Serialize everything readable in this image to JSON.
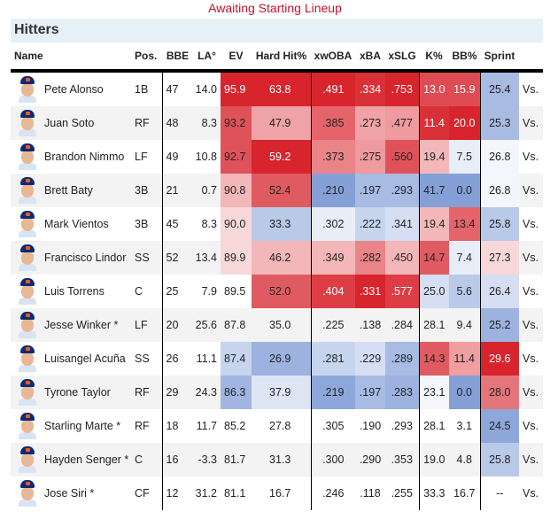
{
  "status_text": "Awaiting Starting Lineup",
  "section_title": "Hitters",
  "columns": {
    "name": "Name",
    "pos": "Pos.",
    "bbe": "BBE",
    "la": "LA°",
    "ev": "EV",
    "hard_hit": "Hard Hit%",
    "xwoba": "xwOBA",
    "xba": "xBA",
    "xslg": "xSLG",
    "k_pct": "K%",
    "bb_pct": "BB%",
    "sprint": "Sprint"
  },
  "vs_label": "Vs.",
  "colors": {
    "status": "#c8102e",
    "section_bg": "#e6f0f7",
    "red_strong": "#d7242d",
    "blue_strong": "#8099d4"
  },
  "players": [
    {
      "name": "Pete Alonso",
      "pos": "1B",
      "bbe": "47",
      "la": "14.0",
      "ev": "95.9",
      "hard_hit": "63.8",
      "xwoba": ".491",
      "xba": ".334",
      "xslg": ".753",
      "k_pct": "13.0",
      "bb_pct": "15.9",
      "sprint": "25.4",
      "heat": {
        "ev": "#d7242d",
        "hard_hit": "#d7242d",
        "xwoba": "#d7242d",
        "xba": "#da3038",
        "xslg": "#d7242d",
        "k_pct": "#df4b52",
        "bb_pct": "#df4b52",
        "sprint": "#a8bbe2"
      },
      "lite": [
        "ev",
        "hard_hit",
        "xwoba",
        "xba",
        "xslg",
        "k_pct",
        "bb_pct"
      ]
    },
    {
      "name": "Juan Soto",
      "pos": "RF",
      "bbe": "48",
      "la": "8.3",
      "ev": "93.2",
      "hard_hit": "47.9",
      "xwoba": ".385",
      "xba": ".273",
      "xslg": ".477",
      "k_pct": "11.4",
      "bb_pct": "20.0",
      "sprint": "25.3",
      "heat": {
        "ev": "#e05259",
        "hard_hit": "#efa3a6",
        "xwoba": "#e46469",
        "xba": "#efa3a6",
        "xslg": "#ee9a9e",
        "k_pct": "#d93039",
        "bb_pct": "#d7242d",
        "sprint": "#a8bbe2"
      },
      "lite": [
        "k_pct",
        "bb_pct"
      ]
    },
    {
      "name": "Brandon Nimmo",
      "pos": "LF",
      "bbe": "49",
      "la": "10.8",
      "ev": "92.7",
      "hard_hit": "59.2",
      "xwoba": ".373",
      "xba": ".275",
      "xslg": ".560",
      "k_pct": "19.4",
      "bb_pct": "7.5",
      "sprint": "26.8",
      "heat": {
        "ev": "#e05259",
        "hard_hit": "#d7242d",
        "xwoba": "#e98488",
        "xba": "#ee9a9e",
        "xslg": "#e05259",
        "k_pct": "#f3b7b9",
        "bb_pct": "#e8eef8",
        "sprint": "#f4f6fb"
      },
      "lite": [
        "hard_hit"
      ]
    },
    {
      "name": "Brett Baty",
      "pos": "3B",
      "bbe": "21",
      "la": "0.7",
      "ev": "90.8",
      "hard_hit": "52.4",
      "xwoba": ".210",
      "xba": ".197",
      "xslg": ".293",
      "k_pct": "41.7",
      "bb_pct": "0.0",
      "sprint": "26.8",
      "heat": {
        "ev": "#f3b7b9",
        "hard_hit": "#e05b61",
        "xwoba": "#84a0d6",
        "xba": "#a8bbe2",
        "xslg": "#a8bbe2",
        "k_pct": "#84a0d6",
        "bb_pct": "#84a0d6",
        "sprint": "#f4f6fb"
      },
      "lite": []
    },
    {
      "name": "Mark Vientos",
      "pos": "3B",
      "bbe": "45",
      "la": "8.3",
      "ev": "90.0",
      "hard_hit": "33.3",
      "xwoba": ".302",
      "xba": ".222",
      "xslg": ".341",
      "k_pct": "19.4",
      "bb_pct": "13.4",
      "sprint": "25.8",
      "heat": {
        "ev": "#f8d7d8",
        "hard_hit": "#b9c9e8",
        "xwoba": "#e8eef8",
        "xba": "#c7d4ee",
        "xslg": "#d5def2",
        "k_pct": "#f3b7b9",
        "bb_pct": "#e46469",
        "sprint": "#b9c9e8"
      },
      "lite": []
    },
    {
      "name": "Francisco Lindor",
      "pos": "SS",
      "bbe": "52",
      "la": "13.4",
      "ev": "89.9",
      "hard_hit": "46.2",
      "xwoba": ".349",
      "xba": ".282",
      "xslg": ".450",
      "k_pct": "14.7",
      "bb_pct": "7.4",
      "sprint": "27.3",
      "heat": {
        "ev": "#f8d7d8",
        "hard_hit": "#f3b7b9",
        "xwoba": "#f3b7b9",
        "xba": "#e98488",
        "xslg": "#f3b7b9",
        "k_pct": "#e05b61",
        "bb_pct": "#e8eef8",
        "sprint": "#f8d7d8"
      },
      "lite": []
    },
    {
      "name": "Luis Torrens",
      "pos": "C",
      "bbe": "25",
      "la": "7.9",
      "ev": "89.5",
      "hard_hit": "52.0",
      "xwoba": ".404",
      "xba": ".331",
      "xslg": ".577",
      "k_pct": "25.0",
      "bb_pct": "5.6",
      "sprint": "26.4",
      "heat": {
        "ev": "",
        "hard_hit": "#e05b61",
        "xwoba": "#dd3e45",
        "xba": "#d7242d",
        "xslg": "#dd3e45",
        "k_pct": "#d5def2",
        "bb_pct": "#b9c9e8",
        "sprint": "#d5def2"
      },
      "lite": [
        "xwoba",
        "xba",
        "xslg"
      ]
    },
    {
      "name": "Jesse Winker *",
      "pos": "LF",
      "bbe": "20",
      "la": "25.6",
      "ev": "87.8",
      "hard_hit": "35.0",
      "xwoba": ".225",
      "xba": ".138",
      "xslg": ".284",
      "k_pct": "28.1",
      "bb_pct": "9.4",
      "sprint": "25.2",
      "heat": {
        "ev": "",
        "hard_hit": "",
        "xwoba": "",
        "xba": "",
        "xslg": "",
        "k_pct": "",
        "bb_pct": "",
        "sprint": "#9db2df"
      },
      "lite": []
    },
    {
      "name": "Luisangel Acuña",
      "pos": "SS",
      "bbe": "26",
      "la": "11.1",
      "ev": "87.4",
      "hard_hit": "26.9",
      "xwoba": ".281",
      "xba": ".229",
      "xslg": ".289",
      "k_pct": "14.3",
      "bb_pct": "11.4",
      "sprint": "29.6",
      "heat": {
        "ev": "#c7d4ee",
        "hard_hit": "#9db2df",
        "xwoba": "#c7d4ee",
        "xba": "#d5def2",
        "xslg": "#a8bbe2",
        "k_pct": "#e05b61",
        "bb_pct": "#ef9fa2",
        "sprint": "#d7242d"
      },
      "lite": [
        "sprint"
      ]
    },
    {
      "name": "Tyrone Taylor",
      "pos": "RF",
      "bbe": "29",
      "la": "24.3",
      "ev": "86.3",
      "hard_hit": "37.9",
      "xwoba": ".219",
      "xba": ".197",
      "xslg": ".283",
      "k_pct": "23.1",
      "bb_pct": "0.0",
      "sprint": "28.0",
      "heat": {
        "ev": "#a1b5e0",
        "hard_hit": "#dde5f4",
        "xwoba": "#8ea7da",
        "xba": "#a8bbe2",
        "xslg": "#9db2df",
        "k_pct": "#f4f6fb",
        "bb_pct": "#84a0d6",
        "sprint": "#e4757a"
      },
      "lite": []
    },
    {
      "name": "Starling Marte *",
      "pos": "RF",
      "bbe": "18",
      "la": "11.7",
      "ev": "85.2",
      "hard_hit": "27.8",
      "xwoba": ".305",
      "xba": ".190",
      "xslg": ".293",
      "k_pct": "28.1",
      "bb_pct": "3.1",
      "sprint": "24.5",
      "heat": {
        "ev": "",
        "hard_hit": "",
        "xwoba": "",
        "xba": "",
        "xslg": "",
        "k_pct": "",
        "bb_pct": "",
        "sprint": "#8ea7da"
      },
      "lite": []
    },
    {
      "name": "Hayden Senger *",
      "pos": "C",
      "bbe": "16",
      "la": "-3.3",
      "ev": "81.7",
      "hard_hit": "31.3",
      "xwoba": ".300",
      "xba": ".290",
      "xslg": ".353",
      "k_pct": "19.0",
      "bb_pct": "4.8",
      "sprint": "25.8",
      "heat": {
        "ev": "",
        "hard_hit": "",
        "xwoba": "",
        "xba": "",
        "xslg": "",
        "k_pct": "",
        "bb_pct": "",
        "sprint": "#b9c9e8"
      },
      "lite": []
    },
    {
      "name": "Jose Siri *",
      "pos": "CF",
      "bbe": "12",
      "la": "31.2",
      "ev": "81.1",
      "hard_hit": "16.7",
      "xwoba": ".246",
      "xba": ".118",
      "xslg": ".255",
      "k_pct": "33.3",
      "bb_pct": "16.7",
      "sprint": "--",
      "heat": {
        "ev": "",
        "hard_hit": "",
        "xwoba": "",
        "xba": "",
        "xslg": "",
        "k_pct": "",
        "bb_pct": "",
        "sprint": ""
      },
      "lite": []
    }
  ]
}
